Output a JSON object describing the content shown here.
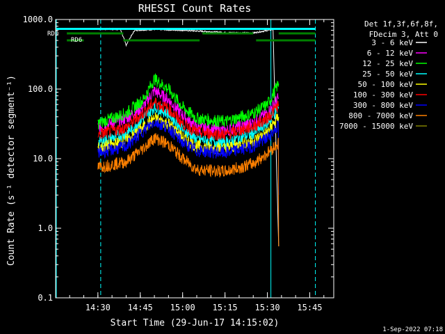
{
  "chart_data": {
    "type": "line",
    "title": "RHESSI Count Rates",
    "xlabel": "Start Time (29-Jun-17 14:15:02)",
    "ylabel": "Count Rate (s⁻¹ detector segment⁻¹)",
    "yscale": "log",
    "ylim": [
      0.1,
      1000
    ],
    "xlim": [
      "14:15:02",
      "15:53:30"
    ],
    "x_ticks": [
      "14:30",
      "14:45",
      "15:00",
      "15:15",
      "15:30",
      "15:45"
    ],
    "y_ticks": [
      "0.1",
      "1.0",
      "10.0",
      "100.0",
      "1000.0"
    ],
    "legend_header": [
      "Det 1f,3f,6f,8f,",
      "FDecim 3, Att 0"
    ],
    "legend_position": "top-right",
    "timestamp": "1-Sep-2022 07:18",
    "series": [
      {
        "name": "3 - 6 keV",
        "color": "#ffffff",
        "values": [
          [
            "14:30",
            730
          ],
          [
            "14:38",
            720
          ],
          [
            "14:40",
            430
          ],
          [
            "14:43",
            700
          ],
          [
            "14:50",
            720
          ],
          [
            "15:00",
            700
          ],
          [
            "15:15",
            650
          ],
          [
            "15:25",
            640
          ],
          [
            "15:32",
            720
          ],
          [
            "15:34",
            0.55
          ]
        ]
      },
      {
        "name": "6 - 12 keV",
        "color": "#ff00ff",
        "values": [
          [
            "14:30",
            28
          ],
          [
            "14:40",
            38
          ],
          [
            "14:46",
            55
          ],
          [
            "14:50",
            95
          ],
          [
            "14:55",
            70
          ],
          [
            "15:00",
            42
          ],
          [
            "15:05",
            28
          ],
          [
            "15:15",
            25
          ],
          [
            "15:25",
            33
          ],
          [
            "15:30",
            45
          ],
          [
            "15:34",
            75
          ]
        ]
      },
      {
        "name": "12 - 25 keV",
        "color": "#00ff00",
        "values": [
          [
            "14:30",
            32
          ],
          [
            "14:40",
            45
          ],
          [
            "14:46",
            70
          ],
          [
            "14:50",
            140
          ],
          [
            "14:55",
            100
          ],
          [
            "15:00",
            55
          ],
          [
            "15:05",
            38
          ],
          [
            "15:15",
            34
          ],
          [
            "15:25",
            45
          ],
          [
            "15:30",
            60
          ],
          [
            "15:34",
            120
          ]
        ]
      },
      {
        "name": "25 - 50 keV",
        "color": "#00ffff",
        "values": [
          [
            "14:30",
            17
          ],
          [
            "14:40",
            23
          ],
          [
            "14:46",
            38
          ],
          [
            "14:50",
            55
          ],
          [
            "14:55",
            45
          ],
          [
            "15:00",
            26
          ],
          [
            "15:05",
            19
          ],
          [
            "15:15",
            17
          ],
          [
            "15:25",
            23
          ],
          [
            "15:30",
            32
          ],
          [
            "15:34",
            55
          ]
        ]
      },
      {
        "name": "50 - 100 keV",
        "color": "#ffff00",
        "values": [
          [
            "14:30",
            14
          ],
          [
            "14:40",
            18
          ],
          [
            "14:46",
            28
          ],
          [
            "14:50",
            38
          ],
          [
            "14:55",
            32
          ],
          [
            "15:00",
            20
          ],
          [
            "15:05",
            15
          ],
          [
            "15:15",
            14
          ],
          [
            "15:25",
            18
          ],
          [
            "15:30",
            24
          ],
          [
            "15:34",
            40
          ]
        ]
      },
      {
        "name": "100 - 300 keV",
        "color": "#ff0000",
        "values": [
          [
            "14:30",
            22
          ],
          [
            "14:40",
            28
          ],
          [
            "14:46",
            45
          ],
          [
            "14:50",
            65
          ],
          [
            "14:55",
            52
          ],
          [
            "15:00",
            32
          ],
          [
            "15:05",
            24
          ],
          [
            "15:15",
            22
          ],
          [
            "15:25",
            29
          ],
          [
            "15:30",
            38
          ],
          [
            "15:34",
            60
          ]
        ]
      },
      {
        "name": "300 - 800 keV",
        "color": "#0000ff",
        "values": [
          [
            "14:30",
            12
          ],
          [
            "14:40",
            15
          ],
          [
            "14:46",
            25
          ],
          [
            "14:50",
            34
          ],
          [
            "14:55",
            28
          ],
          [
            "15:00",
            17
          ],
          [
            "15:05",
            13
          ],
          [
            "15:15",
            12
          ],
          [
            "15:25",
            15
          ],
          [
            "15:30",
            20
          ],
          [
            "15:34",
            30
          ],
          [
            "15:34",
            3
          ]
        ]
      },
      {
        "name": "800 - 7000 keV",
        "color": "#ff8000",
        "values": [
          [
            "14:30",
            7.5
          ],
          [
            "14:40",
            9
          ],
          [
            "14:46",
            14
          ],
          [
            "14:50",
            20
          ],
          [
            "14:55",
            16
          ],
          [
            "15:00",
            10
          ],
          [
            "15:05",
            7
          ],
          [
            "15:15",
            6.5
          ],
          [
            "15:25",
            8.5
          ],
          [
            "15:30",
            12
          ],
          [
            "15:34",
            17
          ],
          [
            "15:34",
            0.55
          ]
        ]
      },
      {
        "name": "7000 - 15000 keV",
        "color": "#808000",
        "values": []
      }
    ],
    "markers": {
      "solid_cyan_lines": [
        "14:15:02",
        "15:31"
      ],
      "dashed_cyan_lines": [
        "14:31",
        "15:47"
      ],
      "attenuator_bars": [
        {
          "label": "RD0",
          "segments": [
            [
              "14:19",
              "14:39"
            ],
            [
              "15:07",
              "15:25"
            ],
            [
              "15:34",
              "15:47"
            ]
          ]
        },
        {
          "label": "RD6",
          "segments": [
            [
              "14:19",
              "14:25"
            ],
            [
              "14:39",
              "15:06"
            ],
            [
              "15:26",
              "15:47"
            ]
          ]
        }
      ],
      "cyan_overlay": [
        [
          "14:15:02",
          "15:47"
        ]
      ]
    }
  }
}
